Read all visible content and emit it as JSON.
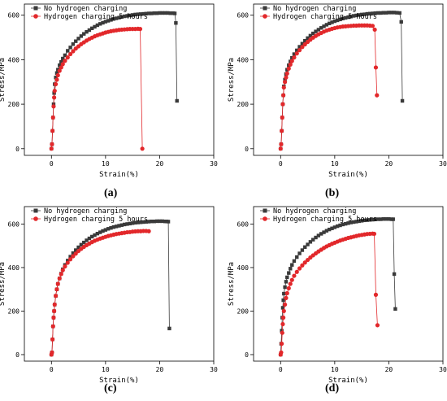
{
  "panel_labels": [
    "(a)",
    "(b)",
    "(c)",
    "(d)"
  ],
  "colors": {
    "no_hydrogen": "#3a3a3a",
    "hydrogen": "#e2282b",
    "axis": "#000000"
  },
  "chart_data": [
    {
      "type": "line",
      "xlabel": "Strain(%)",
      "ylabel": "Stress/MPa",
      "xlim": [
        -5,
        30
      ],
      "ylim": [
        -30,
        650
      ],
      "xticks": [
        0,
        10,
        20,
        30
      ],
      "yticks": [
        0,
        200,
        400,
        600
      ],
      "legend": "top-left",
      "grid": false,
      "series": [
        {
          "name": "No hydrogen charging",
          "marker": "square",
          "x": [
            0,
            0.1,
            0.2,
            0.3,
            0.4,
            0.5,
            0.6,
            0.8,
            1,
            1.2,
            1.5,
            1.8,
            2.1,
            2.5,
            3,
            3.5,
            4,
            4.5,
            5,
            5.5,
            6,
            6.5,
            7,
            7.5,
            8,
            8.5,
            9,
            9.5,
            10,
            10.5,
            11,
            11.5,
            12,
            12.5,
            13,
            13.5,
            14,
            14.5,
            15,
            15.5,
            16,
            16.5,
            17,
            17.5,
            18,
            18.5,
            19,
            19.5,
            20,
            20.5,
            21,
            21.5,
            22,
            22.5,
            22.8,
            23,
            23.2
          ],
          "y": [
            0,
            20,
            80,
            140,
            200,
            250,
            290,
            320,
            340,
            355,
            375,
            390,
            405,
            420,
            440,
            455,
            470,
            483,
            495,
            506,
            516,
            525,
            533,
            541,
            548,
            555,
            561,
            566,
            571,
            575,
            579,
            583,
            586,
            589,
            592,
            595,
            597,
            599,
            601,
            603,
            604,
            605,
            606,
            607,
            608,
            608,
            609,
            609,
            610,
            610,
            610,
            610,
            609,
            609,
            608,
            565,
            215
          ]
        },
        {
          "name": "Hydrogen charging 5 hours",
          "marker": "circle",
          "x": [
            0,
            0.1,
            0.2,
            0.3,
            0.4,
            0.5,
            0.6,
            0.8,
            1,
            1.2,
            1.5,
            1.8,
            2.1,
            2.5,
            3,
            3.5,
            4,
            4.5,
            5,
            5.5,
            6,
            6.5,
            7,
            7.5,
            8,
            8.5,
            9,
            9.5,
            10,
            10.5,
            11,
            11.5,
            12,
            12.5,
            13,
            13.5,
            14,
            14.5,
            15,
            15.5,
            16,
            16.4,
            16.8
          ],
          "y": [
            0,
            20,
            80,
            140,
            190,
            230,
            260,
            290,
            310,
            330,
            350,
            365,
            380,
            395,
            410,
            425,
            438,
            450,
            460,
            470,
            478,
            486,
            493,
            499,
            505,
            510,
            514,
            518,
            522,
            525,
            528,
            530,
            532,
            534,
            535,
            536,
            537,
            538,
            538,
            538,
            539,
            538,
            0
          ]
        }
      ]
    },
    {
      "type": "line",
      "xlabel": "Strain(%)",
      "ylabel": "Stress/MPa",
      "xlim": [
        -5,
        30
      ],
      "ylim": [
        -30,
        650
      ],
      "xticks": [
        0,
        10,
        20,
        30
      ],
      "yticks": [
        0,
        200,
        400,
        600
      ],
      "legend": "top-left",
      "grid": false,
      "series": [
        {
          "name": "No hydrogen charging",
          "marker": "square",
          "x": [
            0,
            0.1,
            0.2,
            0.3,
            0.4,
            0.5,
            0.6,
            0.8,
            1,
            1.2,
            1.5,
            1.8,
            2.1,
            2.5,
            3,
            3.5,
            4,
            4.5,
            5,
            5.5,
            6,
            6.5,
            7,
            7.5,
            8,
            8.5,
            9,
            9.5,
            10,
            10.5,
            11,
            11.5,
            12,
            12.5,
            13,
            13.5,
            14,
            14.5,
            15,
            15.5,
            16,
            16.5,
            17,
            17.5,
            18,
            18.5,
            19,
            19.5,
            20,
            20.5,
            21,
            21.5,
            22,
            22.3,
            22.5
          ],
          "y": [
            0,
            20,
            80,
            140,
            200,
            240,
            280,
            310,
            335,
            355,
            375,
            392,
            408,
            425,
            442,
            458,
            472,
            485,
            497,
            508,
            518,
            527,
            535,
            543,
            550,
            557,
            563,
            568,
            573,
            577,
            581,
            585,
            588,
            591,
            594,
            597,
            599,
            601,
            603,
            604,
            606,
            607,
            608,
            609,
            610,
            610,
            611,
            611,
            612,
            612,
            612,
            611,
            610,
            570,
            215
          ]
        },
        {
          "name": "Hydrogen charging 5 hours",
          "marker": "circle",
          "x": [
            0,
            0.1,
            0.2,
            0.3,
            0.4,
            0.5,
            0.6,
            0.8,
            1,
            1.2,
            1.5,
            1.8,
            2.1,
            2.5,
            3,
            3.5,
            4,
            4.5,
            5,
            5.5,
            6,
            6.5,
            7,
            7.5,
            8,
            8.5,
            9,
            9.5,
            10,
            10.5,
            11,
            11.5,
            12,
            12.5,
            13,
            13.5,
            14,
            14.5,
            15,
            15.5,
            16,
            16.5,
            17,
            17.4,
            17.6,
            17.8
          ],
          "y": [
            0,
            20,
            80,
            140,
            200,
            240,
            275,
            300,
            320,
            338,
            360,
            378,
            394,
            410,
            428,
            443,
            457,
            469,
            480,
            490,
            499,
            507,
            514,
            520,
            526,
            531,
            535,
            539,
            542,
            545,
            547,
            549,
            550,
            551,
            552,
            553,
            553,
            554,
            554,
            554,
            554,
            553,
            552,
            535,
            365,
            240
          ]
        }
      ]
    },
    {
      "type": "line",
      "xlabel": "Strain(%)",
      "ylabel": "Stress/MPa",
      "xlim": [
        -5,
        30
      ],
      "ylim": [
        -30,
        680
      ],
      "xticks": [
        0,
        10,
        20,
        30
      ],
      "yticks": [
        0,
        200,
        400,
        600
      ],
      "legend": "top-left",
      "grid": false,
      "series": [
        {
          "name": "No hydrogen charging",
          "marker": "square",
          "x": [
            0,
            0.1,
            0.2,
            0.3,
            0.4,
            0.5,
            0.6,
            0.8,
            1,
            1.2,
            1.5,
            1.8,
            2.1,
            2.5,
            3,
            3.5,
            4,
            4.5,
            5,
            5.5,
            6,
            6.5,
            7,
            7.5,
            8,
            8.5,
            9,
            9.5,
            10,
            10.5,
            11,
            11.5,
            12,
            12.5,
            13,
            13.5,
            14,
            14.5,
            15,
            15.5,
            16,
            16.5,
            17,
            17.5,
            18,
            18.5,
            19,
            19.5,
            20,
            20.5,
            21,
            21.3,
            21.6,
            21.8
          ],
          "y": [
            0,
            10,
            70,
            130,
            170,
            200,
            230,
            270,
            300,
            325,
            350,
            372,
            392,
            412,
            432,
            450,
            466,
            480,
            493,
            505,
            515,
            525,
            534,
            542,
            549,
            556,
            562,
            568,
            573,
            578,
            582,
            586,
            589,
            592,
            595,
            598,
            600,
            602,
            604,
            606,
            607,
            608,
            609,
            610,
            611,
            612,
            612,
            613,
            613,
            613,
            612,
            612,
            611,
            120
          ]
        },
        {
          "name": "Hydrogen charging 5 hours",
          "marker": "circle",
          "x": [
            0,
            0.1,
            0.2,
            0.3,
            0.4,
            0.5,
            0.6,
            0.8,
            1,
            1.2,
            1.5,
            1.8,
            2.1,
            2.5,
            3,
            3.5,
            4,
            4.5,
            5,
            5.5,
            6,
            6.5,
            7,
            7.5,
            8,
            8.5,
            9,
            9.5,
            10,
            10.5,
            11,
            11.5,
            12,
            12.5,
            13,
            13.5,
            14,
            14.5,
            15,
            15.5,
            16,
            16.5,
            17,
            17.5,
            18
          ],
          "y": [
            0,
            10,
            70,
            130,
            170,
            200,
            230,
            270,
            300,
            325,
            350,
            370,
            388,
            405,
            422,
            438,
            452,
            464,
            476,
            486,
            495,
            503,
            510,
            517,
            523,
            528,
            533,
            537,
            541,
            545,
            548,
            551,
            554,
            556,
            558,
            560,
            562,
            563,
            565,
            566,
            567,
            567,
            568,
            568,
            567
          ]
        }
      ]
    },
    {
      "type": "line",
      "xlabel": "Strain(%)",
      "ylabel": "Stress/MPa",
      "xlim": [
        -5,
        30
      ],
      "ylim": [
        -30,
        680
      ],
      "xticks": [
        0,
        10,
        20,
        30
      ],
      "yticks": [
        0,
        200,
        400,
        600
      ],
      "legend": "top-left",
      "grid": false,
      "series": [
        {
          "name": "No hydrogen charging",
          "marker": "square",
          "x": [
            0,
            0.1,
            0.2,
            0.3,
            0.4,
            0.5,
            0.6,
            0.8,
            1,
            1.2,
            1.5,
            1.8,
            2.1,
            2.5,
            3,
            3.5,
            4,
            4.5,
            5,
            5.5,
            6,
            6.5,
            7,
            7.5,
            8,
            8.5,
            9,
            9.5,
            10,
            10.5,
            11,
            11.5,
            12,
            12.5,
            13,
            13.5,
            14,
            14.5,
            15,
            15.5,
            16,
            16.5,
            17,
            17.5,
            18,
            18.5,
            19,
            19.5,
            20,
            20.5,
            20.8,
            21,
            21.2
          ],
          "y": [
            0,
            50,
            110,
            170,
            215,
            250,
            280,
            310,
            335,
            355,
            375,
            395,
            412,
            430,
            448,
            465,
            480,
            494,
            506,
            518,
            528,
            538,
            547,
            555,
            562,
            569,
            575,
            580,
            585,
            590,
            594,
            598,
            601,
            604,
            607,
            609,
            611,
            613,
            615,
            617,
            618,
            619,
            620,
            621,
            622,
            622,
            623,
            623,
            623,
            622,
            622,
            370,
            210
          ]
        },
        {
          "name": "Hydrogen charging 5 hours",
          "marker": "circle",
          "x": [
            0,
            0.1,
            0.2,
            0.3,
            0.4,
            0.5,
            0.6,
            0.8,
            1,
            1.2,
            1.5,
            1.8,
            2.1,
            2.5,
            3,
            3.5,
            4,
            4.5,
            5,
            5.5,
            6,
            6.5,
            7,
            7.5,
            8,
            8.5,
            9,
            9.5,
            10,
            10.5,
            11,
            11.5,
            12,
            12.5,
            13,
            13.5,
            14,
            14.5,
            15,
            15.5,
            16,
            16.5,
            17,
            17.3,
            17.6,
            17.9
          ],
          "y": [
            0,
            10,
            50,
            100,
            140,
            170,
            200,
            230,
            260,
            282,
            305,
            325,
            343,
            362,
            380,
            396,
            410,
            423,
            435,
            446,
            456,
            465,
            474,
            482,
            490,
            497,
            503,
            509,
            514,
            519,
            524,
            528,
            532,
            536,
            539,
            542,
            545,
            548,
            550,
            552,
            554,
            555,
            556,
            555,
            275,
            135
          ]
        }
      ]
    }
  ]
}
